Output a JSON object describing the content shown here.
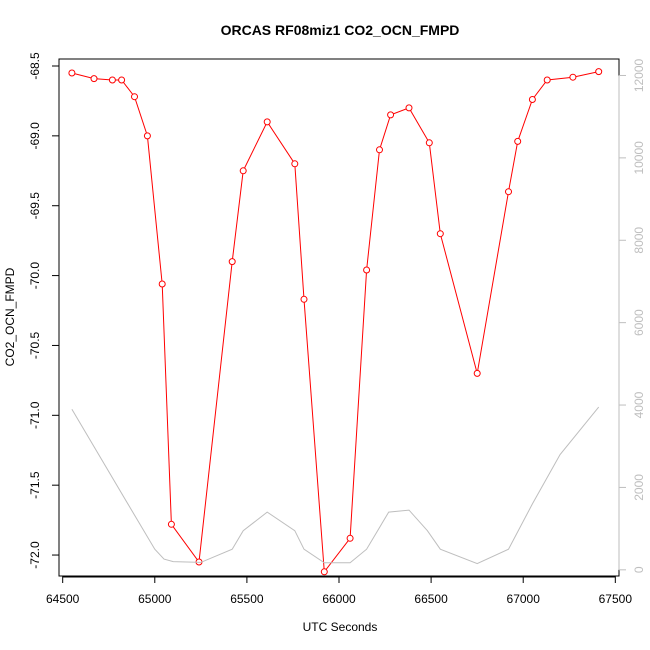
{
  "chart_data": {
    "type": "line",
    "title": "ORCAS RF08miz1 CO2_OCN_FMPD",
    "xlabel": "UTC Seconds",
    "ylabel": "CO2_OCN_FMPD",
    "y2label": "",
    "xlim": [
      64480,
      67520
    ],
    "ylim": [
      -72.15,
      -68.45
    ],
    "y2lim": [
      -150,
      12400
    ],
    "x_ticks": [
      64500,
      65000,
      65500,
      66000,
      66500,
      67000,
      67500
    ],
    "y_ticks": [
      -68.5,
      -69.0,
      -69.5,
      -70.0,
      -70.5,
      -71.0,
      -71.5,
      -72.0
    ],
    "y_tick_labels": [
      "-68.5",
      "-69.0",
      "-69.5",
      "-70.0",
      "-70.5",
      "-71.0",
      "-71.5",
      "-72.0"
    ],
    "y2_ticks": [
      0,
      2000,
      4000,
      6000,
      8000,
      10000,
      12000
    ],
    "grid": false,
    "colors": {
      "primary": "#ff0000",
      "secondary": "#bebebe",
      "axis": "#000000"
    },
    "series": [
      {
        "axis": "left",
        "style": "line-with-open-circles",
        "x": [
          64550,
          64670,
          64770,
          64820,
          64890,
          64960,
          65040,
          65090,
          65240,
          65420,
          65480,
          65610,
          65760,
          65810,
          65920,
          66060,
          66150,
          66220,
          66280,
          66380,
          66490,
          66550,
          66750,
          66920,
          66970,
          67050,
          67130,
          67270,
          67410
        ],
        "y": [
          -68.55,
          -68.59,
          -68.6,
          -68.6,
          -68.72,
          -69.0,
          -70.06,
          -71.78,
          -72.05,
          -69.9,
          -69.25,
          -68.9,
          -69.2,
          -70.17,
          -72.12,
          -71.88,
          -69.96,
          -69.1,
          -68.85,
          -68.8,
          -69.05,
          -69.7,
          -70.7,
          -69.4,
          -69.04,
          -68.74,
          -68.6,
          -68.58,
          -68.54
        ]
      },
      {
        "axis": "right",
        "style": "line",
        "x": [
          64550,
          64900,
          65000,
          65050,
          65100,
          65250,
          65420,
          65480,
          65610,
          65760,
          65810,
          65920,
          66060,
          66150,
          66270,
          66380,
          66480,
          66550,
          66750,
          66920,
          67050,
          67200,
          67410
        ],
        "y": [
          3900,
          1250,
          500,
          260,
          200,
          180,
          500,
          950,
          1400,
          950,
          500,
          170,
          170,
          500,
          1400,
          1450,
          950,
          500,
          150,
          500,
          1600,
          2800,
          3950
        ]
      }
    ]
  }
}
